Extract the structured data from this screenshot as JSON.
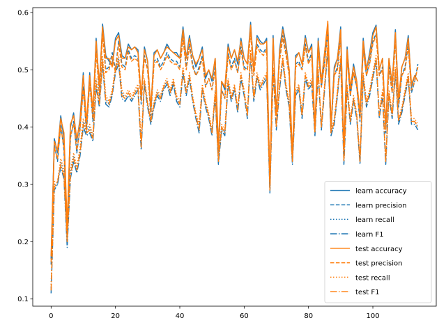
{
  "chart_data": {
    "type": "line",
    "title": "",
    "xlabel": "",
    "ylabel": "",
    "xlim": [
      -5.7,
      119.7
    ],
    "ylim": [
      0.0875,
      0.6085
    ],
    "xticks": [
      0,
      20,
      40,
      60,
      80,
      100
    ],
    "yticks": [
      0.1,
      0.2,
      0.3,
      0.4,
      0.5,
      0.6
    ],
    "grid": false,
    "legend_position": "lower-right",
    "colors": {
      "learn": "#1f77b4",
      "test": "#ff7f0e"
    },
    "x": [
      0,
      1,
      2,
      3,
      4,
      5,
      6,
      7,
      8,
      9,
      10,
      11,
      12,
      13,
      14,
      15,
      16,
      17,
      18,
      19,
      20,
      21,
      22,
      23,
      24,
      25,
      26,
      27,
      28,
      29,
      30,
      31,
      32,
      33,
      34,
      35,
      36,
      37,
      38,
      39,
      40,
      41,
      42,
      43,
      44,
      45,
      46,
      47,
      48,
      49,
      50,
      51,
      52,
      53,
      54,
      55,
      56,
      57,
      58,
      59,
      60,
      61,
      62,
      63,
      64,
      65,
      66,
      67,
      68,
      69,
      70,
      71,
      72,
      73,
      74,
      75,
      76,
      77,
      78,
      79,
      80,
      81,
      82,
      83,
      84,
      85,
      86,
      87,
      88,
      89,
      90,
      91,
      92,
      93,
      94,
      95,
      96,
      97,
      98,
      99,
      100,
      101,
      102,
      103,
      104,
      105,
      106,
      107,
      108,
      109,
      110,
      111,
      112,
      113,
      114
    ],
    "series": [
      {
        "name": "learn accuracy",
        "group": "learn",
        "dash": "solid",
        "values": [
          0.17,
          0.38,
          0.355,
          0.42,
          0.38,
          0.22,
          0.4,
          0.425,
          0.375,
          0.415,
          0.495,
          0.4,
          0.495,
          0.42,
          0.555,
          0.47,
          0.58,
          0.525,
          0.515,
          0.51,
          0.555,
          0.565,
          0.525,
          0.52,
          0.545,
          0.535,
          0.54,
          0.535,
          0.45,
          0.54,
          0.515,
          0.43,
          0.53,
          0.535,
          0.52,
          0.53,
          0.545,
          0.535,
          0.53,
          0.53,
          0.52,
          0.575,
          0.52,
          0.56,
          0.525,
          0.505,
          0.52,
          0.54,
          0.485,
          0.5,
          0.48,
          0.52,
          0.365,
          0.48,
          0.465,
          0.545,
          0.52,
          0.535,
          0.51,
          0.555,
          0.52,
          0.51,
          0.583,
          0.5,
          0.56,
          0.55,
          0.545,
          0.555,
          0.29,
          0.56,
          0.42,
          0.535,
          0.575,
          0.545,
          0.5,
          0.345,
          0.525,
          0.53,
          0.51,
          0.56,
          0.53,
          0.545,
          0.395,
          0.555,
          0.48,
          0.53,
          0.58,
          0.4,
          0.505,
          0.52,
          0.575,
          0.36,
          0.54,
          0.465,
          0.51,
          0.48,
          0.42,
          0.555,
          0.5,
          0.53,
          0.565,
          0.578,
          0.5,
          0.52,
          0.4,
          0.52,
          0.475,
          0.57,
          0.445,
          0.505,
          0.52,
          0.56,
          0.47,
          0.49,
          0.48
        ]
      },
      {
        "name": "learn precision",
        "group": "learn",
        "dash": "dashed",
        "values": [
          0.16,
          0.37,
          0.34,
          0.405,
          0.36,
          0.2,
          0.38,
          0.41,
          0.355,
          0.4,
          0.47,
          0.39,
          0.48,
          0.41,
          0.535,
          0.455,
          0.565,
          0.5,
          0.505,
          0.53,
          0.5,
          0.55,
          0.51,
          0.505,
          0.535,
          0.52,
          0.525,
          0.52,
          0.44,
          0.525,
          0.5,
          0.42,
          0.515,
          0.52,
          0.505,
          0.515,
          0.53,
          0.52,
          0.515,
          0.515,
          0.505,
          0.56,
          0.505,
          0.545,
          0.51,
          0.49,
          0.505,
          0.525,
          0.47,
          0.485,
          0.465,
          0.505,
          0.355,
          0.465,
          0.45,
          0.53,
          0.505,
          0.52,
          0.495,
          0.54,
          0.505,
          0.5,
          0.568,
          0.49,
          0.545,
          0.535,
          0.53,
          0.54,
          0.3,
          0.545,
          0.43,
          0.52,
          0.56,
          0.53,
          0.49,
          0.34,
          0.51,
          0.515,
          0.5,
          0.545,
          0.515,
          0.53,
          0.39,
          0.54,
          0.47,
          0.515,
          0.565,
          0.395,
          0.49,
          0.505,
          0.56,
          0.35,
          0.525,
          0.455,
          0.495,
          0.47,
          0.41,
          0.54,
          0.49,
          0.515,
          0.55,
          0.563,
          0.49,
          0.505,
          0.39,
          0.505,
          0.46,
          0.555,
          0.435,
          0.49,
          0.505,
          0.545,
          0.46,
          0.48,
          0.51
        ]
      },
      {
        "name": "learn recall",
        "group": "learn",
        "dash": "dotted",
        "values": [
          0.12,
          0.3,
          0.3,
          0.34,
          0.32,
          0.2,
          0.32,
          0.35,
          0.325,
          0.36,
          0.41,
          0.39,
          0.4,
          0.38,
          0.48,
          0.44,
          0.52,
          0.45,
          0.44,
          0.46,
          0.5,
          0.52,
          0.46,
          0.45,
          0.46,
          0.45,
          0.46,
          0.47,
          0.37,
          0.48,
          0.44,
          0.41,
          0.44,
          0.46,
          0.45,
          0.47,
          0.48,
          0.46,
          0.48,
          0.45,
          0.44,
          0.5,
          0.46,
          0.49,
          0.45,
          0.42,
          0.4,
          0.47,
          0.44,
          0.42,
          0.39,
          0.46,
          0.34,
          0.4,
          0.39,
          0.48,
          0.45,
          0.47,
          0.43,
          0.49,
          0.46,
          0.42,
          0.53,
          0.45,
          0.49,
          0.47,
          0.48,
          0.49,
          0.29,
          0.5,
          0.4,
          0.47,
          0.52,
          0.47,
          0.44,
          0.34,
          0.46,
          0.47,
          0.42,
          0.49,
          0.47,
          0.48,
          0.39,
          0.5,
          0.4,
          0.47,
          0.54,
          0.39,
          0.41,
          0.46,
          0.52,
          0.34,
          0.47,
          0.41,
          0.45,
          0.42,
          0.34,
          0.49,
          0.44,
          0.46,
          0.49,
          0.52,
          0.42,
          0.46,
          0.34,
          0.46,
          0.42,
          0.5,
          0.41,
          0.43,
          0.46,
          0.49,
          0.41,
          0.41,
          0.4
        ]
      },
      {
        "name": "learn F1",
        "group": "learn",
        "dash": "dashdot",
        "values": [
          0.11,
          0.29,
          0.3,
          0.33,
          0.31,
          0.19,
          0.31,
          0.34,
          0.32,
          0.35,
          0.4,
          0.385,
          0.39,
          0.375,
          0.47,
          0.435,
          0.51,
          0.44,
          0.435,
          0.455,
          0.495,
          0.51,
          0.45,
          0.445,
          0.455,
          0.445,
          0.455,
          0.465,
          0.36,
          0.475,
          0.435,
          0.405,
          0.435,
          0.455,
          0.445,
          0.465,
          0.475,
          0.455,
          0.475,
          0.445,
          0.435,
          0.495,
          0.455,
          0.485,
          0.445,
          0.415,
          0.39,
          0.465,
          0.435,
          0.415,
          0.385,
          0.455,
          0.335,
          0.395,
          0.385,
          0.475,
          0.445,
          0.465,
          0.425,
          0.485,
          0.455,
          0.415,
          0.525,
          0.445,
          0.485,
          0.465,
          0.475,
          0.485,
          0.285,
          0.495,
          0.395,
          0.465,
          0.515,
          0.465,
          0.435,
          0.335,
          0.455,
          0.465,
          0.415,
          0.485,
          0.465,
          0.475,
          0.385,
          0.495,
          0.395,
          0.465,
          0.535,
          0.385,
          0.405,
          0.455,
          0.515,
          0.335,
          0.465,
          0.405,
          0.445,
          0.415,
          0.335,
          0.485,
          0.435,
          0.455,
          0.485,
          0.515,
          0.415,
          0.455,
          0.335,
          0.455,
          0.415,
          0.495,
          0.405,
          0.425,
          0.455,
          0.485,
          0.405,
          0.405,
          0.395
        ]
      },
      {
        "name": "test accuracy",
        "group": "test",
        "dash": "solid",
        "values": [
          0.175,
          0.375,
          0.36,
          0.415,
          0.39,
          0.23,
          0.405,
          0.42,
          0.38,
          0.41,
          0.49,
          0.41,
          0.49,
          0.43,
          0.55,
          0.475,
          0.575,
          0.52,
          0.52,
          0.505,
          0.55,
          0.56,
          0.52,
          0.52,
          0.54,
          0.535,
          0.54,
          0.53,
          0.455,
          0.535,
          0.515,
          0.435,
          0.525,
          0.535,
          0.52,
          0.53,
          0.54,
          0.535,
          0.53,
          0.525,
          0.52,
          0.57,
          0.52,
          0.555,
          0.525,
          0.51,
          0.52,
          0.535,
          0.49,
          0.5,
          0.485,
          0.52,
          0.37,
          0.48,
          0.47,
          0.54,
          0.52,
          0.535,
          0.515,
          0.55,
          0.52,
          0.51,
          0.578,
          0.5,
          0.555,
          0.545,
          0.545,
          0.55,
          0.3,
          0.555,
          0.42,
          0.53,
          0.57,
          0.54,
          0.5,
          0.35,
          0.52,
          0.53,
          0.51,
          0.555,
          0.53,
          0.54,
          0.4,
          0.55,
          0.48,
          0.53,
          0.585,
          0.405,
          0.5,
          0.52,
          0.57,
          0.365,
          0.535,
          0.47,
          0.505,
          0.48,
          0.425,
          0.55,
          0.5,
          0.525,
          0.56,
          0.575,
          0.5,
          0.52,
          0.405,
          0.52,
          0.475,
          0.565,
          0.45,
          0.505,
          0.52,
          0.555,
          0.475,
          0.49,
          0.48
        ]
      },
      {
        "name": "test precision",
        "group": "test",
        "dash": "dashed",
        "values": [
          0.165,
          0.365,
          0.345,
          0.4,
          0.365,
          0.21,
          0.385,
          0.405,
          0.36,
          0.395,
          0.465,
          0.395,
          0.475,
          0.415,
          0.53,
          0.46,
          0.56,
          0.495,
          0.5,
          0.525,
          0.495,
          0.545,
          0.505,
          0.5,
          0.53,
          0.515,
          0.52,
          0.515,
          0.445,
          0.52,
          0.5,
          0.425,
          0.51,
          0.515,
          0.5,
          0.51,
          0.525,
          0.515,
          0.51,
          0.51,
          0.5,
          0.555,
          0.5,
          0.54,
          0.505,
          0.49,
          0.5,
          0.52,
          0.47,
          0.485,
          0.465,
          0.5,
          0.36,
          0.465,
          0.45,
          0.525,
          0.5,
          0.515,
          0.495,
          0.535,
          0.5,
          0.5,
          0.563,
          0.49,
          0.54,
          0.53,
          0.525,
          0.535,
          0.305,
          0.54,
          0.43,
          0.515,
          0.555,
          0.525,
          0.49,
          0.345,
          0.505,
          0.51,
          0.5,
          0.54,
          0.51,
          0.525,
          0.395,
          0.535,
          0.47,
          0.51,
          0.57,
          0.4,
          0.49,
          0.5,
          0.555,
          0.355,
          0.52,
          0.455,
          0.495,
          0.47,
          0.415,
          0.535,
          0.49,
          0.51,
          0.545,
          0.56,
          0.49,
          0.5,
          0.395,
          0.5,
          0.46,
          0.55,
          0.44,
          0.49,
          0.5,
          0.54,
          0.465,
          0.48,
          0.505
        ]
      },
      {
        "name": "test recall",
        "group": "test",
        "dash": "dotted",
        "values": [
          0.125,
          0.305,
          0.305,
          0.345,
          0.325,
          0.21,
          0.325,
          0.355,
          0.33,
          0.365,
          0.415,
          0.395,
          0.405,
          0.385,
          0.485,
          0.445,
          0.525,
          0.455,
          0.445,
          0.465,
          0.505,
          0.525,
          0.465,
          0.455,
          0.465,
          0.455,
          0.465,
          0.475,
          0.375,
          0.485,
          0.445,
          0.415,
          0.445,
          0.465,
          0.455,
          0.475,
          0.485,
          0.465,
          0.485,
          0.455,
          0.445,
          0.505,
          0.465,
          0.495,
          0.455,
          0.425,
          0.405,
          0.475,
          0.445,
          0.425,
          0.395,
          0.465,
          0.345,
          0.405,
          0.395,
          0.485,
          0.455,
          0.475,
          0.435,
          0.495,
          0.465,
          0.425,
          0.535,
          0.455,
          0.495,
          0.475,
          0.485,
          0.495,
          0.295,
          0.505,
          0.405,
          0.475,
          0.525,
          0.475,
          0.445,
          0.345,
          0.465,
          0.475,
          0.425,
          0.495,
          0.475,
          0.485,
          0.395,
          0.505,
          0.405,
          0.475,
          0.545,
          0.395,
          0.415,
          0.465,
          0.525,
          0.345,
          0.475,
          0.415,
          0.455,
          0.425,
          0.345,
          0.495,
          0.445,
          0.465,
          0.495,
          0.525,
          0.425,
          0.465,
          0.345,
          0.465,
          0.425,
          0.505,
          0.415,
          0.435,
          0.465,
          0.495,
          0.415,
          0.415,
          0.405
        ]
      },
      {
        "name": "test F1",
        "group": "test",
        "dash": "dashdot",
        "values": [
          0.115,
          0.295,
          0.305,
          0.335,
          0.315,
          0.2,
          0.315,
          0.345,
          0.325,
          0.355,
          0.405,
          0.39,
          0.395,
          0.38,
          0.475,
          0.44,
          0.515,
          0.445,
          0.44,
          0.46,
          0.5,
          0.515,
          0.455,
          0.45,
          0.46,
          0.45,
          0.46,
          0.47,
          0.365,
          0.48,
          0.44,
          0.41,
          0.44,
          0.46,
          0.45,
          0.47,
          0.48,
          0.46,
          0.48,
          0.45,
          0.44,
          0.5,
          0.46,
          0.49,
          0.45,
          0.42,
          0.395,
          0.47,
          0.44,
          0.42,
          0.39,
          0.46,
          0.34,
          0.4,
          0.39,
          0.48,
          0.45,
          0.47,
          0.43,
          0.49,
          0.46,
          0.42,
          0.53,
          0.45,
          0.49,
          0.47,
          0.48,
          0.49,
          0.29,
          0.5,
          0.4,
          0.47,
          0.52,
          0.47,
          0.44,
          0.34,
          0.46,
          0.47,
          0.42,
          0.49,
          0.47,
          0.48,
          0.39,
          0.5,
          0.4,
          0.47,
          0.54,
          0.39,
          0.41,
          0.46,
          0.52,
          0.34,
          0.47,
          0.41,
          0.45,
          0.42,
          0.34,
          0.49,
          0.44,
          0.46,
          0.49,
          0.52,
          0.42,
          0.46,
          0.34,
          0.46,
          0.42,
          0.5,
          0.41,
          0.43,
          0.46,
          0.49,
          0.41,
          0.41,
          0.4
        ]
      }
    ]
  }
}
